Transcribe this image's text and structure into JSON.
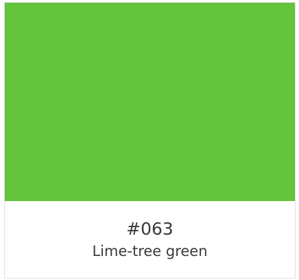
{
  "color": {
    "code": "#063",
    "name": "Lime-tree green",
    "swatch_hex": "#64c43c"
  }
}
